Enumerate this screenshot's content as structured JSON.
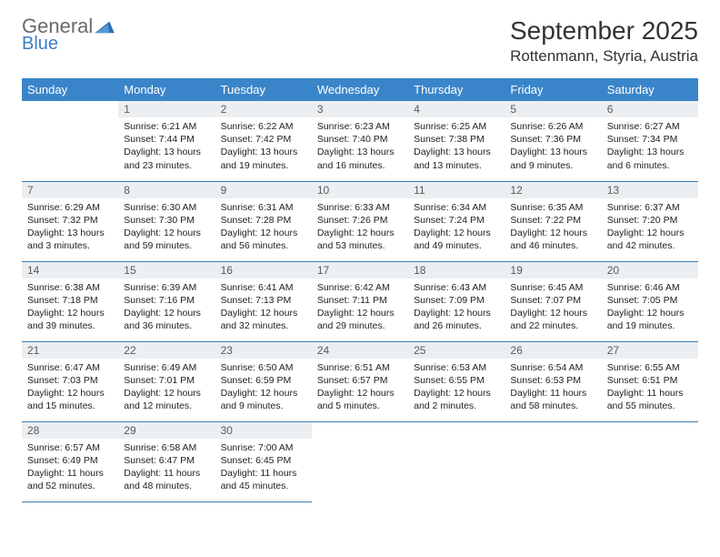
{
  "brand": {
    "name_top": "General",
    "name_bottom": "Blue"
  },
  "title": "September 2025",
  "location": "Rottenmann, Styria, Austria",
  "colors": {
    "header_bg": "#3a85c9",
    "daynum_bg": "#eceff1",
    "rule": "#3a7fb8",
    "brand_blue": "#3a7fc4"
  },
  "weekdays": [
    "Sunday",
    "Monday",
    "Tuesday",
    "Wednesday",
    "Thursday",
    "Friday",
    "Saturday"
  ],
  "grid": [
    [
      null,
      {
        "n": "1",
        "sr": "Sunrise: 6:21 AM",
        "ss": "Sunset: 7:44 PM",
        "dl": "Daylight: 13 hours and 23 minutes."
      },
      {
        "n": "2",
        "sr": "Sunrise: 6:22 AM",
        "ss": "Sunset: 7:42 PM",
        "dl": "Daylight: 13 hours and 19 minutes."
      },
      {
        "n": "3",
        "sr": "Sunrise: 6:23 AM",
        "ss": "Sunset: 7:40 PM",
        "dl": "Daylight: 13 hours and 16 minutes."
      },
      {
        "n": "4",
        "sr": "Sunrise: 6:25 AM",
        "ss": "Sunset: 7:38 PM",
        "dl": "Daylight: 13 hours and 13 minutes."
      },
      {
        "n": "5",
        "sr": "Sunrise: 6:26 AM",
        "ss": "Sunset: 7:36 PM",
        "dl": "Daylight: 13 hours and 9 minutes."
      },
      {
        "n": "6",
        "sr": "Sunrise: 6:27 AM",
        "ss": "Sunset: 7:34 PM",
        "dl": "Daylight: 13 hours and 6 minutes."
      }
    ],
    [
      {
        "n": "7",
        "sr": "Sunrise: 6:29 AM",
        "ss": "Sunset: 7:32 PM",
        "dl": "Daylight: 13 hours and 3 minutes."
      },
      {
        "n": "8",
        "sr": "Sunrise: 6:30 AM",
        "ss": "Sunset: 7:30 PM",
        "dl": "Daylight: 12 hours and 59 minutes."
      },
      {
        "n": "9",
        "sr": "Sunrise: 6:31 AM",
        "ss": "Sunset: 7:28 PM",
        "dl": "Daylight: 12 hours and 56 minutes."
      },
      {
        "n": "10",
        "sr": "Sunrise: 6:33 AM",
        "ss": "Sunset: 7:26 PM",
        "dl": "Daylight: 12 hours and 53 minutes."
      },
      {
        "n": "11",
        "sr": "Sunrise: 6:34 AM",
        "ss": "Sunset: 7:24 PM",
        "dl": "Daylight: 12 hours and 49 minutes."
      },
      {
        "n": "12",
        "sr": "Sunrise: 6:35 AM",
        "ss": "Sunset: 7:22 PM",
        "dl": "Daylight: 12 hours and 46 minutes."
      },
      {
        "n": "13",
        "sr": "Sunrise: 6:37 AM",
        "ss": "Sunset: 7:20 PM",
        "dl": "Daylight: 12 hours and 42 minutes."
      }
    ],
    [
      {
        "n": "14",
        "sr": "Sunrise: 6:38 AM",
        "ss": "Sunset: 7:18 PM",
        "dl": "Daylight: 12 hours and 39 minutes."
      },
      {
        "n": "15",
        "sr": "Sunrise: 6:39 AM",
        "ss": "Sunset: 7:16 PM",
        "dl": "Daylight: 12 hours and 36 minutes."
      },
      {
        "n": "16",
        "sr": "Sunrise: 6:41 AM",
        "ss": "Sunset: 7:13 PM",
        "dl": "Daylight: 12 hours and 32 minutes."
      },
      {
        "n": "17",
        "sr": "Sunrise: 6:42 AM",
        "ss": "Sunset: 7:11 PM",
        "dl": "Daylight: 12 hours and 29 minutes."
      },
      {
        "n": "18",
        "sr": "Sunrise: 6:43 AM",
        "ss": "Sunset: 7:09 PM",
        "dl": "Daylight: 12 hours and 26 minutes."
      },
      {
        "n": "19",
        "sr": "Sunrise: 6:45 AM",
        "ss": "Sunset: 7:07 PM",
        "dl": "Daylight: 12 hours and 22 minutes."
      },
      {
        "n": "20",
        "sr": "Sunrise: 6:46 AM",
        "ss": "Sunset: 7:05 PM",
        "dl": "Daylight: 12 hours and 19 minutes."
      }
    ],
    [
      {
        "n": "21",
        "sr": "Sunrise: 6:47 AM",
        "ss": "Sunset: 7:03 PM",
        "dl": "Daylight: 12 hours and 15 minutes."
      },
      {
        "n": "22",
        "sr": "Sunrise: 6:49 AM",
        "ss": "Sunset: 7:01 PM",
        "dl": "Daylight: 12 hours and 12 minutes."
      },
      {
        "n": "23",
        "sr": "Sunrise: 6:50 AM",
        "ss": "Sunset: 6:59 PM",
        "dl": "Daylight: 12 hours and 9 minutes."
      },
      {
        "n": "24",
        "sr": "Sunrise: 6:51 AM",
        "ss": "Sunset: 6:57 PM",
        "dl": "Daylight: 12 hours and 5 minutes."
      },
      {
        "n": "25",
        "sr": "Sunrise: 6:53 AM",
        "ss": "Sunset: 6:55 PM",
        "dl": "Daylight: 12 hours and 2 minutes."
      },
      {
        "n": "26",
        "sr": "Sunrise: 6:54 AM",
        "ss": "Sunset: 6:53 PM",
        "dl": "Daylight: 11 hours and 58 minutes."
      },
      {
        "n": "27",
        "sr": "Sunrise: 6:55 AM",
        "ss": "Sunset: 6:51 PM",
        "dl": "Daylight: 11 hours and 55 minutes."
      }
    ],
    [
      {
        "n": "28",
        "sr": "Sunrise: 6:57 AM",
        "ss": "Sunset: 6:49 PM",
        "dl": "Daylight: 11 hours and 52 minutes."
      },
      {
        "n": "29",
        "sr": "Sunrise: 6:58 AM",
        "ss": "Sunset: 6:47 PM",
        "dl": "Daylight: 11 hours and 48 minutes."
      },
      {
        "n": "30",
        "sr": "Sunrise: 7:00 AM",
        "ss": "Sunset: 6:45 PM",
        "dl": "Daylight: 11 hours and 45 minutes."
      },
      null,
      null,
      null,
      null
    ]
  ]
}
